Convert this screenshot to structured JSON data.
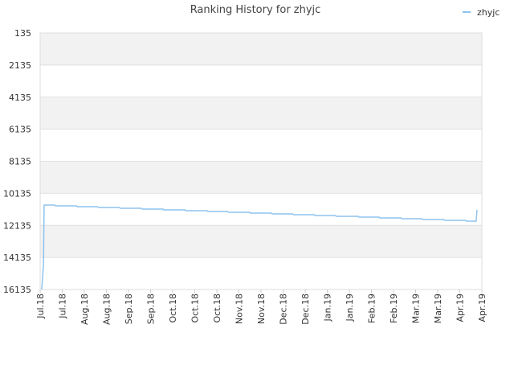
{
  "chart_data": {
    "type": "line",
    "title": "Ranking History for zhyjc",
    "series": [
      {
        "name": "zhyjc",
        "color": "#8ec3ee",
        "x": [
          0.07,
          0.11,
          0.15,
          0.18,
          0.66,
          0.7,
          1.65,
          1.68,
          2.6,
          2.64,
          3.59,
          3.63,
          4.58,
          4.62,
          5.57,
          5.6,
          6.56,
          6.59,
          7.55,
          7.58,
          8.5,
          8.53,
          9.49,
          9.52,
          10.48,
          10.51,
          11.43,
          11.47,
          12.42,
          12.45,
          13.37,
          13.41,
          14.4,
          14.43,
          15.35,
          15.38,
          16.34,
          16.37,
          17.29,
          17.33,
          18.28,
          18.32,
          19.27,
          19.3,
          19.74,
          19.78
        ],
        "values": [
          16135,
          15382,
          14630,
          10869,
          10869,
          10919,
          10919,
          10969,
          10969,
          11019,
          11019,
          11069,
          11069,
          11119,
          11119,
          11169,
          11169,
          11219,
          11219,
          11269,
          11269,
          11320,
          11320,
          11370,
          11370,
          11420,
          11420,
          11470,
          11470,
          11520,
          11520,
          11570,
          11570,
          11620,
          11620,
          11671,
          11671,
          11721,
          11721,
          11771,
          11771,
          11821,
          11821,
          11871,
          11871,
          11169
        ]
      }
    ],
    "xlim": [
      0,
      20
    ],
    "xticks": [
      {
        "value": 0,
        "label": "Jul.18"
      },
      {
        "value": 1,
        "label": "Jul.18"
      },
      {
        "value": 2,
        "label": "Aug.18"
      },
      {
        "value": 3,
        "label": "Aug.18"
      },
      {
        "value": 4,
        "label": "Sep.18"
      },
      {
        "value": 5,
        "label": "Sep.18"
      },
      {
        "value": 6,
        "label": "Oct.18"
      },
      {
        "value": 7,
        "label": "Oct.18"
      },
      {
        "value": 8,
        "label": "Oct.18"
      },
      {
        "value": 9,
        "label": "Nov.18"
      },
      {
        "value": 10,
        "label": "Nov.18"
      },
      {
        "value": 11,
        "label": "Dec.18"
      },
      {
        "value": 12,
        "label": "Dec.18"
      },
      {
        "value": 13,
        "label": "Jan.19"
      },
      {
        "value": 14,
        "label": "Jan.19"
      },
      {
        "value": 15,
        "label": "Feb.19"
      },
      {
        "value": 16,
        "label": "Feb.19"
      },
      {
        "value": 17,
        "label": "Mar.19"
      },
      {
        "value": 18,
        "label": "Mar.19"
      },
      {
        "value": 19,
        "label": "Apr.19"
      },
      {
        "value": 20,
        "label": "Apr.19"
      }
    ],
    "ylim": [
      16135,
      135
    ],
    "yticks": [
      135,
      2135,
      4135,
      6135,
      8135,
      10135,
      12135,
      14135,
      16135
    ],
    "grid": true,
    "legend": "top-right"
  }
}
